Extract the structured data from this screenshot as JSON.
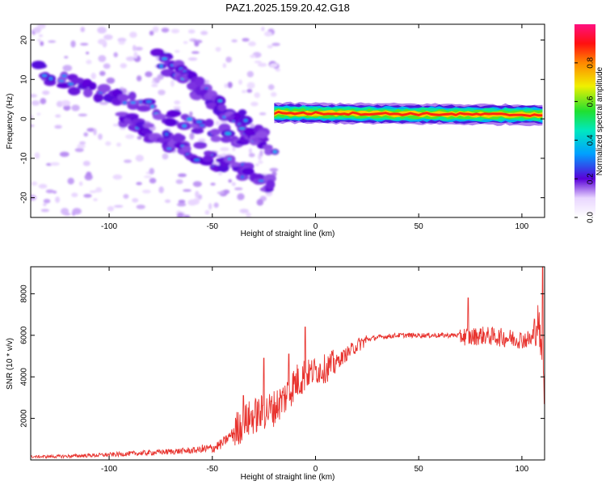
{
  "figure_title": "PAZ1.2025.159.20.42.G18",
  "chart_data": [
    {
      "type": "heatmap",
      "title": "PAZ1.2025.159.20.42.G18",
      "xlabel": "Height of straight line (km)",
      "ylabel": "Frequency (Hz)",
      "xlim": [
        -138,
        111
      ],
      "ylim": [
        -25,
        24
      ],
      "xticks": [
        -100,
        -50,
        0,
        50,
        100
      ],
      "yticks": [
        -20,
        -10,
        0,
        10,
        20
      ],
      "colorbar": {
        "label": "Normalized spectral amplitude",
        "range": [
          0,
          1
        ],
        "ticks": [
          0.0,
          0.2,
          0.4,
          0.6,
          0.8
        ]
      },
      "features": [
        {
          "x_range": [
            -20,
            111
          ],
          "freq_center_start": 1.5,
          "freq_center_end": 1.0,
          "amplitude": "high"
        },
        {
          "x_range": [
            -135,
            -20
          ],
          "freq_from": 12,
          "freq_to": -8,
          "amplitude": "low"
        },
        {
          "x_range": [
            -95,
            -20
          ],
          "freq_from": 0,
          "freq_to": -17,
          "amplitude": "low"
        },
        {
          "x_range": [
            -75,
            -25
          ],
          "freq_from": 15,
          "freq_to": -5,
          "amplitude": "low"
        }
      ]
    },
    {
      "type": "line",
      "xlabel": "Height of straight line (km)",
      "ylabel": "SNR (10 * v/v)",
      "xlim": [
        -138,
        111
      ],
      "ylim": [
        0,
        9300
      ],
      "xticks": [
        -100,
        -50,
        0,
        50,
        100
      ],
      "yticks": [
        2000,
        4000,
        6000,
        8000
      ],
      "color": "#e8332e",
      "series": [
        {
          "x": [
            -138,
            -120,
            -100,
            -80,
            -60,
            -50,
            -45,
            -40,
            -35,
            -30,
            -25,
            -20,
            -15,
            -10,
            -5,
            0,
            5,
            10,
            15,
            20,
            25,
            30,
            40,
            50,
            60,
            70,
            75,
            80,
            90,
            100,
            105,
            108,
            111
          ],
          "y": [
            150,
            180,
            250,
            350,
            450,
            550,
            800,
            1300,
            1800,
            2100,
            2300,
            2500,
            3000,
            3700,
            4100,
            4300,
            4400,
            4700,
            5100,
            5500,
            5800,
            5900,
            6000,
            6000,
            6000,
            6000,
            5900,
            6000,
            5900,
            5800,
            5800,
            6800,
            3000
          ],
          "peaks": [
            [
              110,
              9300
            ],
            [
              -5,
              6400
            ],
            [
              -13,
              5100
            ],
            [
              -25,
              4900
            ],
            [
              74,
              7800
            ],
            [
              -35,
              3100
            ]
          ]
        }
      ]
    }
  ]
}
